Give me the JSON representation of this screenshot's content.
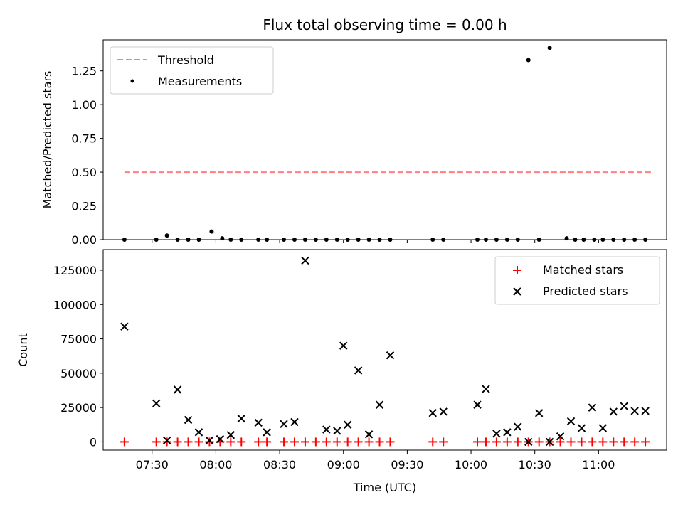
{
  "figure_title": "Flux total observing time = 0.00 h",
  "chart_data": [
    {
      "type": "scatter",
      "ylabel": "Matched/Predicted stars",
      "xlabel": "",
      "xlim": [
        "07:07",
        "11:32"
      ],
      "ylim": [
        0,
        1.48
      ],
      "yticks": [
        0.0,
        0.25,
        0.5,
        0.75,
        1.0,
        1.25
      ],
      "ytick_labels": [
        "0.00",
        "0.25",
        "0.50",
        "0.75",
        "1.00",
        "1.25"
      ],
      "threshold": {
        "name": "Threshold",
        "y": 0.5,
        "x_start": "07:17",
        "x_end": "11:25",
        "color": "#ff7f7f",
        "style": "dashed"
      },
      "legend_position": "upper-left",
      "series": [
        {
          "name": "Measurements",
          "marker": "dot",
          "color": "#000000",
          "x": [
            "07:17",
            "07:32",
            "07:37",
            "07:42",
            "07:47",
            "07:52",
            "07:58",
            "08:03",
            "08:07",
            "08:12",
            "08:20",
            "08:24",
            "08:32",
            "08:37",
            "08:42",
            "08:47",
            "08:52",
            "08:57",
            "09:02",
            "09:07",
            "09:12",
            "09:17",
            "09:22",
            "09:42",
            "09:47",
            "10:03",
            "10:07",
            "10:12",
            "10:17",
            "10:22",
            "10:27",
            "10:32",
            "10:37",
            "10:45",
            "10:49",
            "10:53",
            "10:58",
            "11:02",
            "11:07",
            "11:12",
            "11:17",
            "11:22"
          ],
          "y": [
            0.0,
            0.0,
            0.03,
            0.0,
            0.0,
            0.0,
            0.06,
            0.01,
            0.0,
            0.0,
            0.0,
            0.0,
            0.0,
            0.0,
            0.0,
            0.0,
            0.0,
            0.0,
            0.0,
            0.0,
            0.0,
            0.0,
            0.0,
            0.0,
            0.0,
            0.0,
            0.0,
            0.0,
            0.0,
            0.0,
            1.33,
            0.0,
            1.42,
            0.01,
            0.0,
            0.0,
            0.0,
            0.0,
            0.0,
            0.0,
            0.0,
            0.0
          ]
        }
      ]
    },
    {
      "type": "scatter",
      "ylabel": "Count",
      "xlabel": "Time (UTC)",
      "xlim": [
        "07:07",
        "11:32"
      ],
      "ylim": [
        -6000,
        140000
      ],
      "yticks": [
        0,
        25000,
        50000,
        75000,
        100000,
        125000
      ],
      "ytick_labels": [
        "0",
        "25000",
        "50000",
        "75000",
        "100000",
        "125000"
      ],
      "xticks": [
        "07:30",
        "08:00",
        "08:30",
        "09:00",
        "09:30",
        "10:00",
        "10:30",
        "11:00"
      ],
      "xtick_labels": [
        "07:30",
        "08:00",
        "08:30",
        "09:00",
        "09:30",
        "10:00",
        "10:30",
        "11:00"
      ],
      "legend_position": "upper-right",
      "series": [
        {
          "name": "Matched stars",
          "marker": "plus",
          "color": "#ff0000",
          "x": [
            "07:17",
            "07:32",
            "07:37",
            "07:42",
            "07:47",
            "07:52",
            "07:57",
            "08:02",
            "08:07",
            "08:12",
            "08:20",
            "08:24",
            "08:32",
            "08:37",
            "08:42",
            "08:47",
            "08:52",
            "08:57",
            "09:02",
            "09:07",
            "09:12",
            "09:17",
            "09:22",
            "09:42",
            "09:47",
            "10:03",
            "10:07",
            "10:12",
            "10:17",
            "10:22",
            "10:27",
            "10:32",
            "10:37",
            "10:42",
            "10:47",
            "10:52",
            "10:57",
            "11:02",
            "11:07",
            "11:12",
            "11:17",
            "11:22"
          ],
          "y": [
            0,
            0,
            0,
            0,
            0,
            0,
            0,
            0,
            0,
            0,
            0,
            0,
            0,
            0,
            0,
            0,
            0,
            0,
            0,
            0,
            0,
            0,
            0,
            0,
            0,
            0,
            0,
            0,
            0,
            0,
            0,
            0,
            0,
            0,
            0,
            0,
            0,
            0,
            0,
            0,
            0,
            0
          ]
        },
        {
          "name": "Predicted stars",
          "marker": "x",
          "color": "#000000",
          "x": [
            "07:17",
            "07:32",
            "07:37",
            "07:42",
            "07:47",
            "07:52",
            "07:57",
            "08:02",
            "08:07",
            "08:12",
            "08:20",
            "08:24",
            "08:32",
            "08:37",
            "08:42",
            "08:52",
            "08:57",
            "09:00",
            "09:02",
            "09:07",
            "09:12",
            "09:17",
            "09:22",
            "09:42",
            "09:47",
            "10:03",
            "10:07",
            "10:12",
            "10:17",
            "10:22",
            "10:27",
            "10:32",
            "10:37",
            "10:42",
            "10:47",
            "10:52",
            "10:57",
            "11:02",
            "11:07",
            "11:12",
            "11:17",
            "11:22"
          ],
          "y": [
            84000,
            28000,
            1000,
            38000,
            16000,
            7000,
            1000,
            2000,
            5000,
            17000,
            14000,
            7000,
            13000,
            14500,
            132000,
            9000,
            8000,
            70000,
            12500,
            52000,
            5500,
            27000,
            63000,
            21000,
            22000,
            27000,
            38500,
            6000,
            7000,
            11000,
            0,
            21000,
            0,
            4000,
            15000,
            10000,
            25000,
            10000,
            22000,
            26000,
            22500,
            22500
          ]
        }
      ]
    }
  ]
}
